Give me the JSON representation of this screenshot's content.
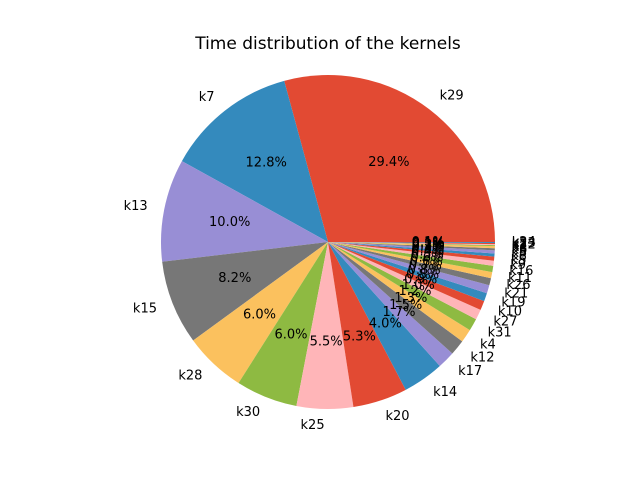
{
  "chart_data": {
    "type": "pie",
    "title": "Time distribution of the kernels",
    "start_angle_deg": 0,
    "direction": "counterclockwise",
    "slices": [
      {
        "label": "k29",
        "percent": 29.4,
        "pct_label": "29.4%",
        "color": "#E24A33"
      },
      {
        "label": "k7",
        "percent": 12.8,
        "pct_label": "12.8%",
        "color": "#348ABD"
      },
      {
        "label": "k13",
        "percent": 10.0,
        "pct_label": "10.0%",
        "color": "#988ED5"
      },
      {
        "label": "k15",
        "percent": 8.2,
        "pct_label": "8.2%",
        "color": "#777777"
      },
      {
        "label": "k28",
        "percent": 6.0,
        "pct_label": "6.0%",
        "color": "#FBC15E"
      },
      {
        "label": "k30",
        "percent": 6.0,
        "pct_label": "6.0%",
        "color": "#8EBA42"
      },
      {
        "label": "k25",
        "percent": 5.5,
        "pct_label": "5.5%",
        "color": "#FFB5B8"
      },
      {
        "label": "k20",
        "percent": 5.3,
        "pct_label": "5.3%",
        "color": "#E24A33"
      },
      {
        "label": "k14",
        "percent": 4.0,
        "pct_label": "4.0%",
        "color": "#348ABD"
      },
      {
        "label": "k17",
        "percent": 1.7,
        "pct_label": "1.7%",
        "color": "#988ED5"
      },
      {
        "label": "k12",
        "percent": 1.5,
        "pct_label": "1.5%",
        "color": "#777777"
      },
      {
        "label": "k4",
        "percent": 1.3,
        "pct_label": "1.3%",
        "color": "#FBC15E"
      },
      {
        "label": "k31",
        "percent": 1.2,
        "pct_label": "1.2%",
        "color": "#8EBA42"
      },
      {
        "label": "k27",
        "percent": 1.0,
        "pct_label": "1.0%",
        "color": "#FFB5B8"
      },
      {
        "label": "k10",
        "percent": 0.9,
        "pct_label": "0.9%",
        "color": "#E24A33"
      },
      {
        "label": "k19",
        "percent": 0.8,
        "pct_label": "0.8%",
        "color": "#348ABD"
      },
      {
        "label": "k21",
        "percent": 0.8,
        "pct_label": "0.8%",
        "color": "#988ED5"
      },
      {
        "label": "k26",
        "percent": 0.7,
        "pct_label": "0.7%",
        "color": "#777777"
      },
      {
        "label": "k11",
        "percent": 0.6,
        "pct_label": "0.6%",
        "color": "#FBC15E"
      },
      {
        "label": "k16",
        "percent": 0.6,
        "pct_label": "0.6%",
        "color": "#8EBA42"
      },
      {
        "label": "k9",
        "percent": 0.5,
        "pct_label": "0.5%",
        "color": "#FFB5B8"
      },
      {
        "label": "k5",
        "percent": 0.4,
        "pct_label": "0.4%",
        "color": "#E24A33"
      },
      {
        "label": "k8",
        "percent": 0.3,
        "pct_label": "0.3%",
        "color": "#348ABD"
      },
      {
        "label": "k3",
        "percent": 0.3,
        "pct_label": "0.3%",
        "color": "#988ED5"
      },
      {
        "label": "k6",
        "percent": 0.2,
        "pct_label": "0.2%",
        "color": "#777777"
      },
      {
        "label": "k2",
        "percent": 0.2,
        "pct_label": "0.2%",
        "color": "#FBC15E"
      },
      {
        "label": "k1",
        "percent": 0.1,
        "pct_label": "0.1%",
        "color": "#8EBA42"
      },
      {
        "label": "k22",
        "percent": 0.1,
        "pct_label": "0.1%",
        "color": "#FFB5B8"
      },
      {
        "label": "k23",
        "percent": 0.1,
        "pct_label": "0.1%",
        "color": "#E24A33"
      },
      {
        "label": "k24",
        "percent": 0.1,
        "pct_label": "0.1%",
        "color": "#348ABD"
      }
    ]
  }
}
